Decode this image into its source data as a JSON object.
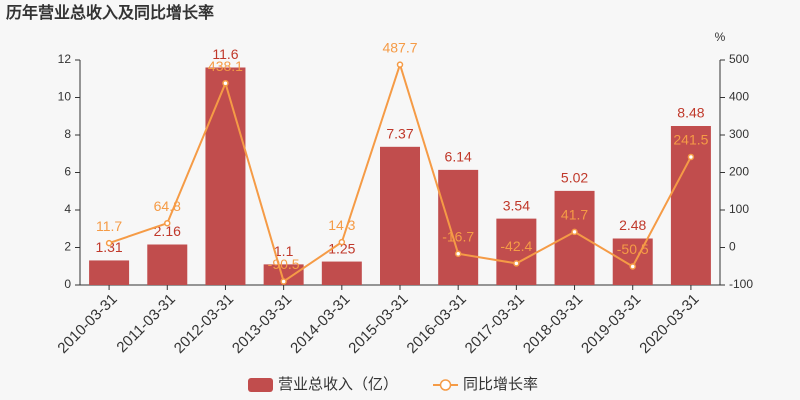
{
  "chart_data": {
    "type": "bar",
    "title": "历年营业总收入及同比增长率",
    "categories": [
      "2010-03-31",
      "2011-03-31",
      "2012-03-31",
      "2013-03-31",
      "2014-03-31",
      "2015-03-31",
      "2016-03-31",
      "2017-03-31",
      "2018-03-31",
      "2019-03-31",
      "2020-03-31"
    ],
    "series": [
      {
        "name": "营业总收入（亿）",
        "type": "bar",
        "color": "#c14d4d",
        "label_color": "#c0392b",
        "values": [
          1.31,
          2.16,
          11.6,
          1.1,
          1.25,
          7.37,
          6.14,
          3.54,
          5.02,
          2.48,
          8.48
        ]
      },
      {
        "name": "同比增长率",
        "type": "line",
        "axis": "y2",
        "color": "#f59b46",
        "label_color": "#f59b46",
        "values": [
          11.7,
          64.8,
          438.1,
          -90.5,
          14.3,
          487.7,
          -16.7,
          -42.4,
          41.7,
          -50.5,
          241.5
        ]
      }
    ],
    "ylim": [
      0,
      12
    ],
    "yticks": [
      0,
      2,
      4,
      6,
      8,
      10,
      12
    ],
    "y2lim": [
      -100,
      500
    ],
    "y2ticks": [
      -100,
      0,
      100,
      200,
      300,
      400,
      500
    ],
    "y2label": "%",
    "grid": false
  }
}
